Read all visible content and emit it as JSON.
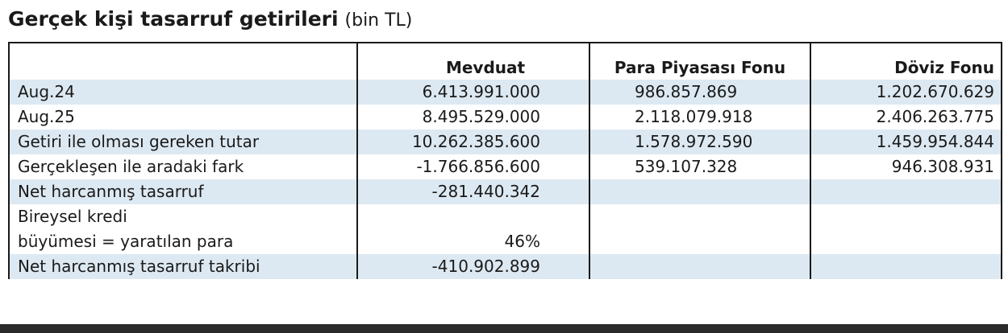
{
  "title": {
    "main": "Gerçek kişi tasarruf getirileri",
    "unit": "(bin TL)"
  },
  "table": {
    "headers": [
      "",
      "Mevduat",
      "Para Piyasası Fonu",
      "Döviz Fonu"
    ],
    "rows": [
      {
        "label": "Aug.24",
        "mevduat": "6.413.991.000",
        "ppf": "986.857.869",
        "doviz": "1.202.670.629"
      },
      {
        "label": "Aug.25",
        "mevduat": "8.495.529.000",
        "ppf": "2.118.079.918",
        "doviz": "2.406.263.775"
      },
      {
        "label": "Getiri ile olması gereken tutar",
        "mevduat": "10.262.385.600",
        "ppf": "1.578.972.590",
        "doviz": "1.459.954.844"
      },
      {
        "label": "Gerçekleşen ile aradaki fark",
        "mevduat": "-1.766.856.600",
        "ppf": "539.107.328",
        "doviz": "946.308.931"
      },
      {
        "label": "Net harcanmış tasarruf",
        "mevduat": "-281.440.342",
        "ppf": "",
        "doviz": ""
      },
      {
        "label_line1": "Bireysel kredi",
        "label_line2": "büyümesi = yaratılan para",
        "mevduat": "46%",
        "ppf": "",
        "doviz": ""
      },
      {
        "label": "Net harcanmış tasarruf takribi",
        "mevduat": "-410.902.899",
        "ppf": "",
        "doviz": ""
      }
    ]
  }
}
